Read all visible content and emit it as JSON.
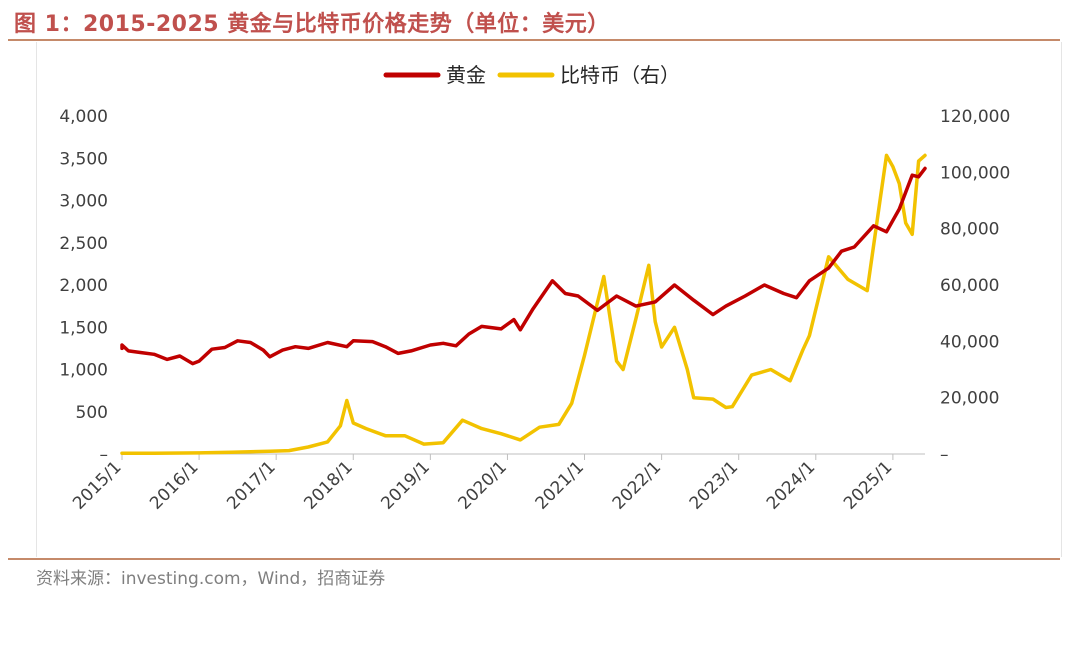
{
  "title": "图 1：2015-2025 黄金与比特币价格走势（单位：美元）",
  "source": "资料来源：investing.com，Wind，招商证券",
  "colors": {
    "title": "#c0504d",
    "gold": "#c00000",
    "bitcoin": "#f2c200",
    "rule": "#c58a6a"
  },
  "chart_data": {
    "type": "line",
    "legend": {
      "position": "top-center",
      "entries": [
        "黄金",
        "比特币（右）"
      ]
    },
    "grid": false,
    "x_axis": {
      "ticks": [
        "2015/1",
        "2016/1",
        "2017/1",
        "2018/1",
        "2019/1",
        "2020/1",
        "2021/1",
        "2022/1",
        "2023/1",
        "2024/1",
        "2025/1"
      ],
      "range": [
        "2015-01",
        "2025-06"
      ]
    },
    "y_left": {
      "min": 0,
      "max": 4000,
      "ticks": [
        0,
        500,
        1000,
        1500,
        2000,
        2500,
        3000,
        3500,
        4000
      ],
      "tick_labels": [
        "–",
        "500",
        "1,000",
        "1,500",
        "2,000",
        "2,500",
        "3,000",
        "3,500",
        "4,000"
      ]
    },
    "y_right": {
      "min": 0,
      "max": 120000,
      "ticks": [
        0,
        20000,
        40000,
        60000,
        80000,
        100000,
        120000
      ],
      "tick_labels": [
        "–",
        "20,000",
        "40,000",
        "60,000",
        "80,000",
        "100,000",
        "120,000"
      ]
    },
    "series": [
      {
        "name": "黄金",
        "axis": "left",
        "points": [
          [
            "2015-01",
            1250
          ],
          [
            "2015-01",
            1290
          ],
          [
            "2015-02",
            1220
          ],
          [
            "2015-04",
            1200
          ],
          [
            "2015-06",
            1180
          ],
          [
            "2015-08",
            1120
          ],
          [
            "2015-10",
            1160
          ],
          [
            "2015-12",
            1070
          ],
          [
            "2016-01",
            1100
          ],
          [
            "2016-03",
            1240
          ],
          [
            "2016-05",
            1260
          ],
          [
            "2016-07",
            1340
          ],
          [
            "2016-09",
            1320
          ],
          [
            "2016-11",
            1230
          ],
          [
            "2016-12",
            1150
          ],
          [
            "2017-02",
            1230
          ],
          [
            "2017-04",
            1270
          ],
          [
            "2017-06",
            1250
          ],
          [
            "2017-09",
            1320
          ],
          [
            "2017-12",
            1270
          ],
          [
            "2018-01",
            1340
          ],
          [
            "2018-04",
            1330
          ],
          [
            "2018-06",
            1270
          ],
          [
            "2018-08",
            1190
          ],
          [
            "2018-10",
            1220
          ],
          [
            "2019-01",
            1290
          ],
          [
            "2019-03",
            1310
          ],
          [
            "2019-05",
            1280
          ],
          [
            "2019-07",
            1420
          ],
          [
            "2019-09",
            1510
          ],
          [
            "2019-12",
            1480
          ],
          [
            "2020-02",
            1590
          ],
          [
            "2020-03",
            1470
          ],
          [
            "2020-05",
            1720
          ],
          [
            "2020-08",
            2050
          ],
          [
            "2020-10",
            1900
          ],
          [
            "2020-12",
            1870
          ],
          [
            "2021-03",
            1700
          ],
          [
            "2021-06",
            1870
          ],
          [
            "2021-09",
            1750
          ],
          [
            "2021-12",
            1800
          ],
          [
            "2022-03",
            2000
          ],
          [
            "2022-06",
            1820
          ],
          [
            "2022-09",
            1650
          ],
          [
            "2022-11",
            1750
          ],
          [
            "2023-02",
            1870
          ],
          [
            "2023-05",
            2000
          ],
          [
            "2023-08",
            1900
          ],
          [
            "2023-10",
            1850
          ],
          [
            "2023-12",
            2050
          ],
          [
            "2024-03",
            2200
          ],
          [
            "2024-05",
            2400
          ],
          [
            "2024-07",
            2450
          ],
          [
            "2024-10",
            2700
          ],
          [
            "2024-12",
            2630
          ],
          [
            "2025-02",
            2900
          ],
          [
            "2025-04",
            3300
          ],
          [
            "2025-05",
            3280
          ],
          [
            "2025-06",
            3380
          ]
        ]
      },
      {
        "name": "比特币（右）",
        "axis": "right",
        "points": [
          [
            "2015-01",
            300
          ],
          [
            "2015-06",
            250
          ],
          [
            "2016-01",
            400
          ],
          [
            "2016-06",
            650
          ],
          [
            "2016-12",
            950
          ],
          [
            "2017-03",
            1200
          ],
          [
            "2017-06",
            2500
          ],
          [
            "2017-09",
            4300
          ],
          [
            "2017-11",
            10000
          ],
          [
            "2017-12",
            19000
          ],
          [
            "2018-01",
            11000
          ],
          [
            "2018-03",
            9000
          ],
          [
            "2018-06",
            6500
          ],
          [
            "2018-09",
            6500
          ],
          [
            "2018-12",
            3500
          ],
          [
            "2019-03",
            4000
          ],
          [
            "2019-06",
            12000
          ],
          [
            "2019-09",
            9000
          ],
          [
            "2019-12",
            7200
          ],
          [
            "2020-03",
            5000
          ],
          [
            "2020-06",
            9500
          ],
          [
            "2020-09",
            10500
          ],
          [
            "2020-11",
            18000
          ],
          [
            "2021-01",
            35000
          ],
          [
            "2021-04",
            63000
          ],
          [
            "2021-06",
            33000
          ],
          [
            "2021-07",
            30000
          ],
          [
            "2021-09",
            48000
          ],
          [
            "2021-11",
            67000
          ],
          [
            "2021-12",
            47000
          ],
          [
            "2022-01",
            38000
          ],
          [
            "2022-03",
            45000
          ],
          [
            "2022-05",
            30000
          ],
          [
            "2022-06",
            20000
          ],
          [
            "2022-09",
            19500
          ],
          [
            "2022-11",
            16500
          ],
          [
            "2022-12",
            16800
          ],
          [
            "2023-03",
            28000
          ],
          [
            "2023-06",
            30000
          ],
          [
            "2023-09",
            26000
          ],
          [
            "2023-11",
            37000
          ],
          [
            "2023-12",
            42000
          ],
          [
            "2024-03",
            70000
          ],
          [
            "2024-06",
            62000
          ],
          [
            "2024-09",
            58000
          ],
          [
            "2024-11",
            90000
          ],
          [
            "2024-12",
            106000
          ],
          [
            "2025-01",
            102000
          ],
          [
            "2025-02",
            96000
          ],
          [
            "2025-03",
            82000
          ],
          [
            "2025-04",
            78000
          ],
          [
            "2025-05",
            104000
          ],
          [
            "2025-06",
            106000
          ]
        ]
      }
    ]
  }
}
